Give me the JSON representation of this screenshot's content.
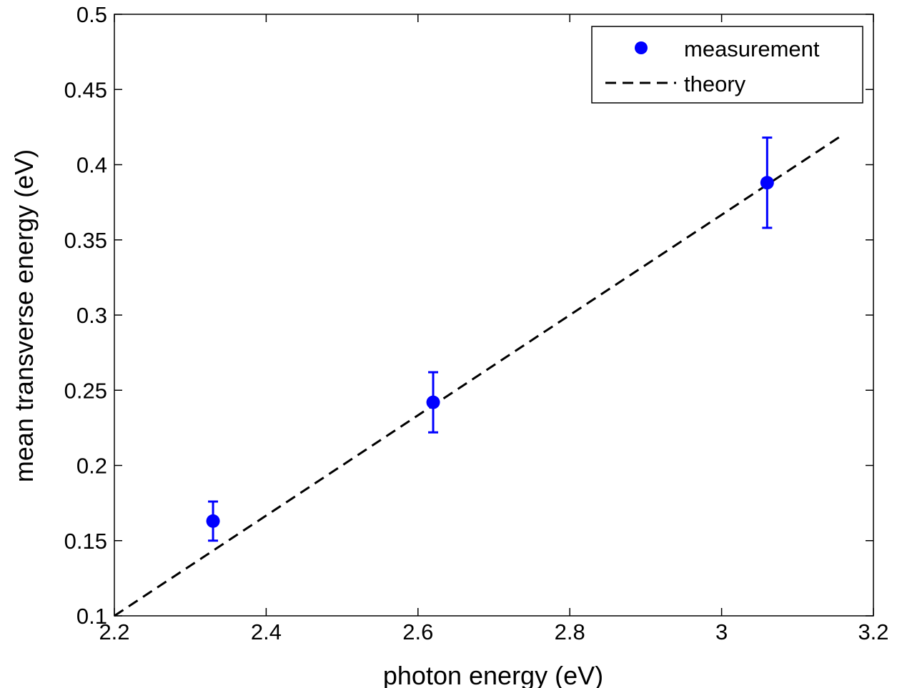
{
  "chart_data": {
    "type": "scatter",
    "xlabel": "photon energy (eV)",
    "ylabel": "mean transverse energy (eV)",
    "xlim": [
      2.2,
      3.2
    ],
    "ylim": [
      0.1,
      0.5
    ],
    "xticks": [
      2.2,
      2.4,
      2.6,
      2.8,
      3,
      3.2
    ],
    "xtick_labels": [
      "2.2",
      "2.4",
      "2.6",
      "2.8",
      "3",
      "3.2"
    ],
    "yticks": [
      0.1,
      0.15,
      0.2,
      0.25,
      0.3,
      0.35,
      0.4,
      0.45,
      0.5
    ],
    "ytick_labels": [
      "0.1",
      "0.15",
      "0.2",
      "0.25",
      "0.3",
      "0.35",
      "0.4",
      "0.45",
      "0.5"
    ],
    "grid": false,
    "legend_position": "top-right",
    "series": [
      {
        "name": "measurement",
        "type": "scatter",
        "color": "#0000ff",
        "x": [
          2.33,
          2.62,
          3.06
        ],
        "y": [
          0.163,
          0.242,
          0.388
        ],
        "y_low": [
          0.15,
          0.222,
          0.358
        ],
        "y_high": [
          0.176,
          0.262,
          0.418
        ]
      },
      {
        "name": "theory",
        "type": "line",
        "style": "dashed",
        "color": "#000000",
        "x": [
          2.2,
          3.16
        ],
        "y": [
          0.1,
          0.42
        ]
      }
    ]
  }
}
